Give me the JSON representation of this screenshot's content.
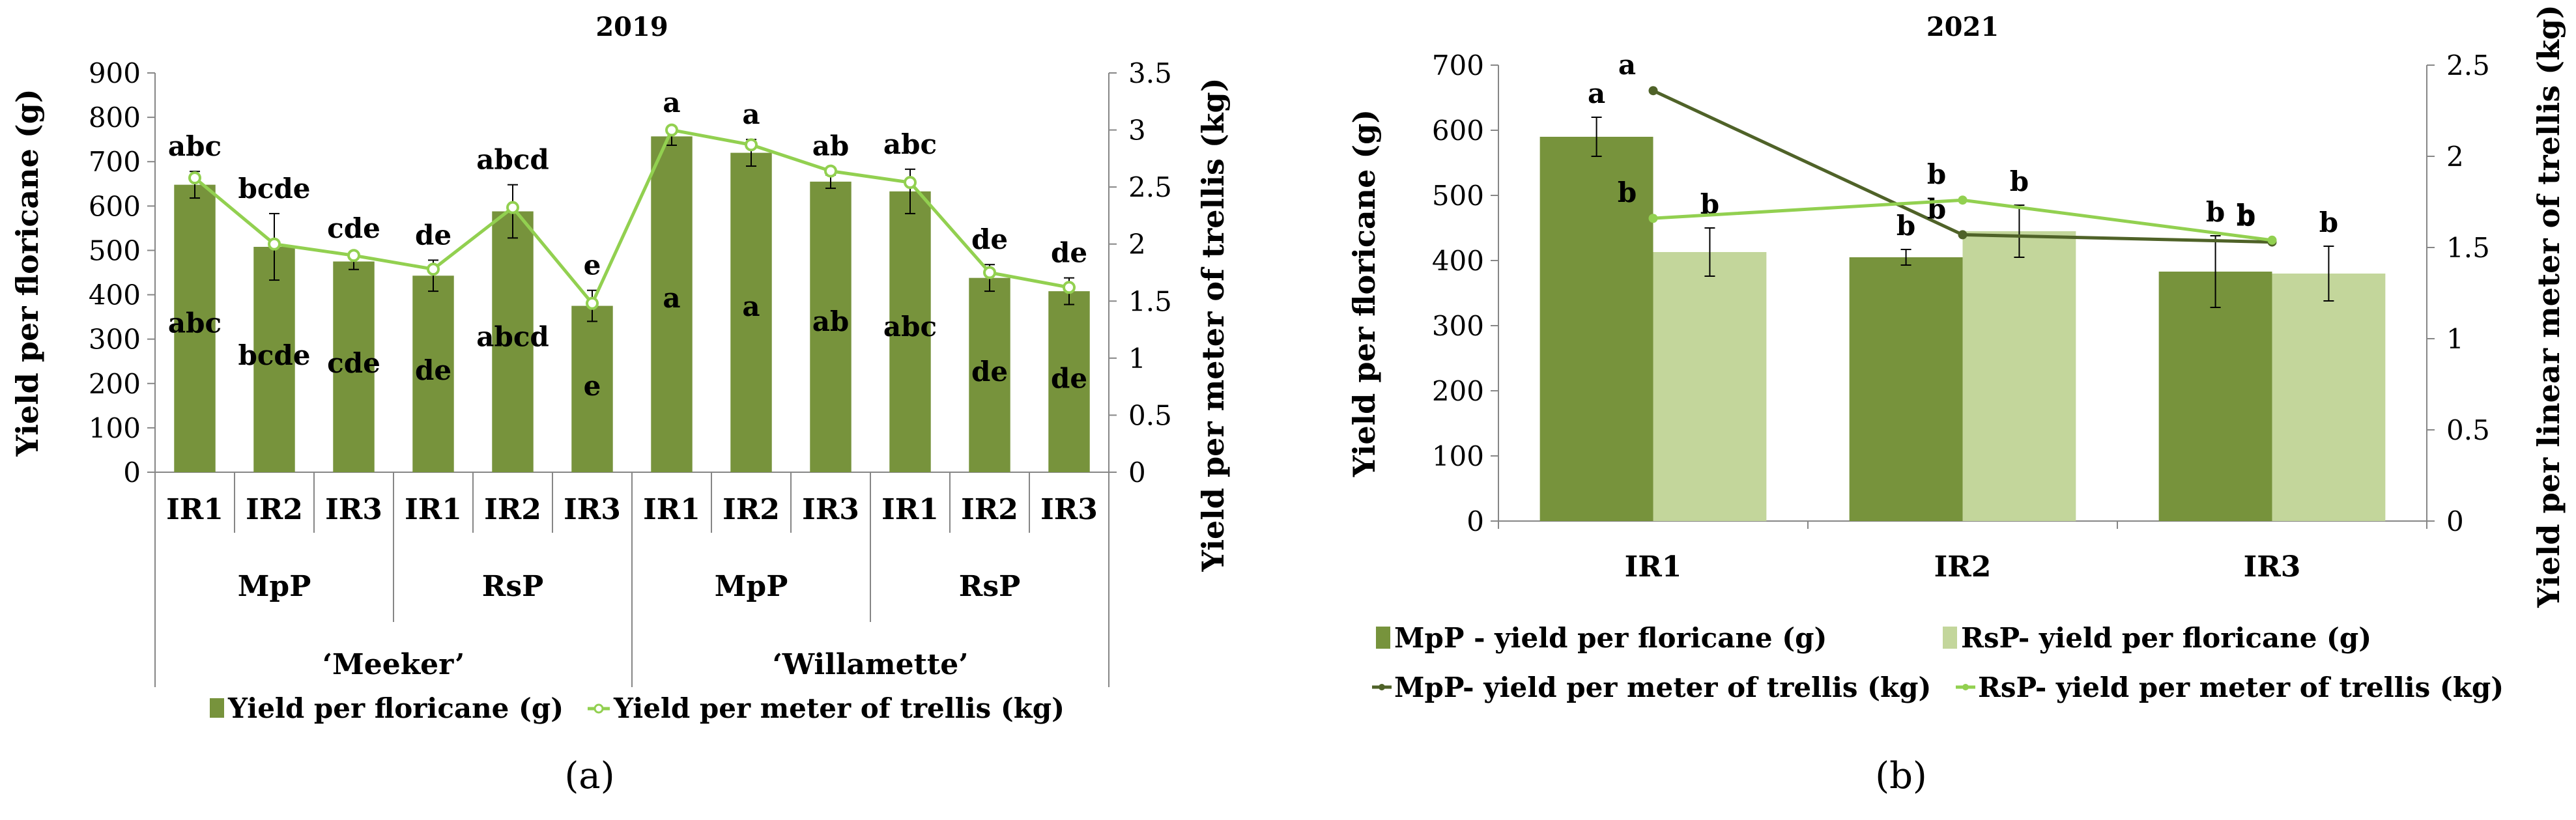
{
  "chart_data": [
    {
      "type": "bar",
      "panel_label": "(a)",
      "title": "2019",
      "ylabel": "Yield per floricane (g)",
      "y2label": "Yield per meter of trellis (kg)",
      "ylim": [
        0,
        900
      ],
      "yticks": [
        0,
        100,
        200,
        300,
        400,
        500,
        600,
        700,
        800,
        900
      ],
      "y2lim": [
        0,
        3.5
      ],
      "y2ticks": [
        "0",
        "0.5",
        "1",
        "1.5",
        "2",
        "2.5",
        "3",
        "3.5"
      ],
      "categories": [
        "IR1",
        "IR2",
        "IR3",
        "IR1",
        "IR2",
        "IR3",
        "IR1",
        "IR2",
        "IR3",
        "IR1",
        "IR2",
        "IR3"
      ],
      "system_groups": [
        "MpP",
        "RsP",
        "MpP",
        "RsP"
      ],
      "cultivar_groups": [
        "‘Meeker’",
        "‘Willamette’"
      ],
      "series": [
        {
          "name": "Yield per floricane (g)",
          "kind": "bar",
          "color": "#77933c",
          "values": [
            648,
            508,
            475,
            443,
            588,
            375,
            757,
            720,
            655,
            633,
            438,
            408
          ],
          "errors": [
            30,
            75,
            18,
            35,
            60,
            35,
            20,
            30,
            15,
            50,
            30,
            30
          ],
          "letters": [
            "abc",
            "bcde",
            "cde",
            "de",
            "abcd",
            "e",
            "a",
            "a",
            "ab",
            "abc",
            "de",
            "de"
          ]
        },
        {
          "name": "Yield per  meter of trellis (kg)",
          "kind": "line",
          "color": "#92d050",
          "values": [
            2.58,
            2.0,
            1.9,
            1.78,
            2.32,
            1.48,
            3.0,
            2.87,
            2.64,
            2.54,
            1.75,
            1.62
          ],
          "letters": [
            "abc",
            "bcde",
            "cde",
            "de",
            "abcd",
            "e",
            "a",
            "a",
            "ab",
            "abc",
            "de",
            "de"
          ]
        }
      ]
    },
    {
      "type": "bar",
      "panel_label": "(b)",
      "title": "2021",
      "ylabel": "Yield per floricane (g)",
      "y2label": "Yield per linear meter of trellis (kg)",
      "ylim": [
        0,
        700
      ],
      "yticks": [
        0,
        100,
        200,
        300,
        400,
        500,
        600,
        700
      ],
      "y2lim": [
        0,
        2.5
      ],
      "y2ticks": [
        "0",
        "0.5",
        "1",
        "1.5",
        "2",
        "2.5"
      ],
      "categories": [
        "IR1",
        "IR2",
        "IR3"
      ],
      "series": [
        {
          "name": "MpP - yield per floricane (g)",
          "kind": "bar",
          "color": "#77933c",
          "values": [
            590,
            405,
            383
          ],
          "errors": [
            30,
            12,
            55
          ],
          "letters": [
            "a",
            "b",
            "b"
          ]
        },
        {
          "name": "RsP- yield per floricane (g)",
          "kind": "bar",
          "color": "#c3d69b",
          "values": [
            413,
            445,
            380
          ],
          "errors": [
            37,
            40,
            42
          ],
          "letters": [
            "b",
            "b",
            "b"
          ]
        },
        {
          "name": "MpP- yield per meter of trellis (kg)",
          "kind": "line",
          "color": "#4f6228",
          "values": [
            2.36,
            1.57,
            1.53
          ],
          "letters": [
            "a",
            "b",
            "b"
          ]
        },
        {
          "name": "RsP- yield per meter of trellis (kg)",
          "kind": "line",
          "color": "#92d050",
          "values": [
            1.66,
            1.76,
            1.54
          ],
          "letters": [
            "b",
            "b",
            "b"
          ]
        }
      ]
    }
  ]
}
